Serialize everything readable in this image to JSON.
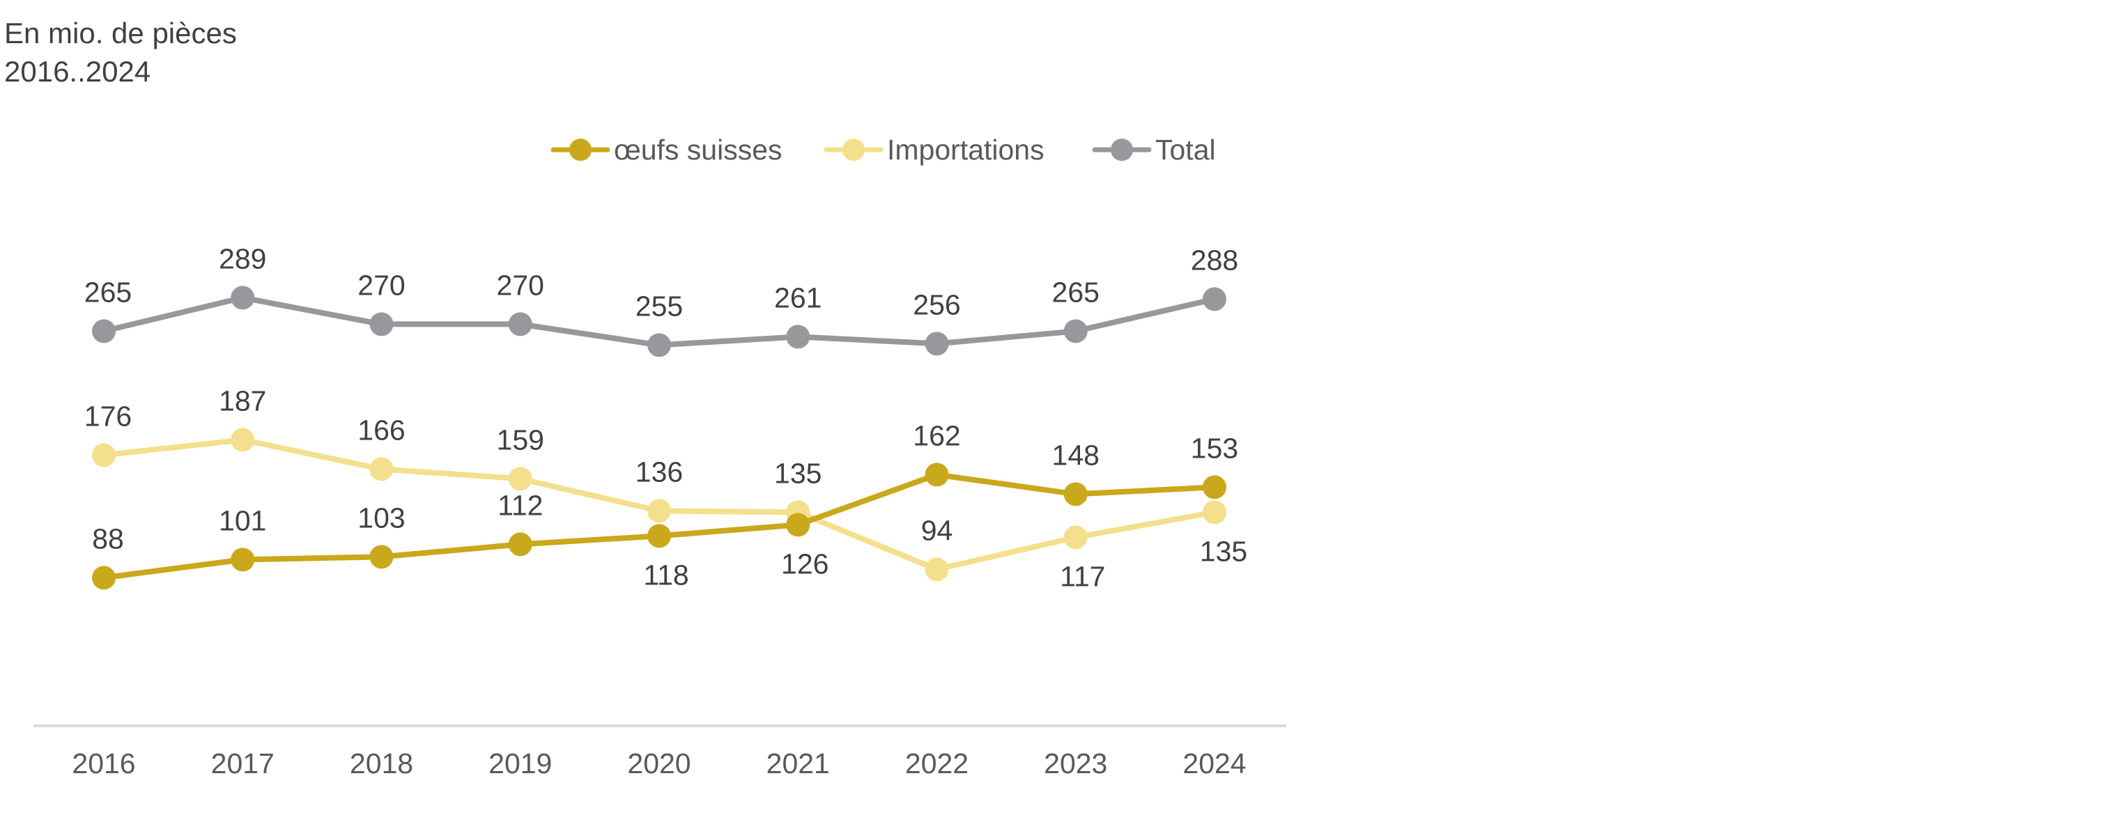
{
  "chart_data": {
    "type": "line",
    "subtitle_lines": [
      "En mio. de pièces",
      "2016..2024"
    ],
    "categories": [
      "2016",
      "2017",
      "2018",
      "2019",
      "2020",
      "2021",
      "2022",
      "2023",
      "2024"
    ],
    "ylim": [
      0,
      300
    ],
    "grid": false,
    "legend_position": "top-center",
    "series": [
      {
        "name": "œufs suisses",
        "color": "#C9A81B",
        "values": [
          88,
          101,
          103,
          112,
          118,
          126,
          162,
          148,
          153
        ],
        "label_positions": [
          "above",
          "above",
          "above",
          "above",
          "below",
          "below",
          "above",
          "above",
          "above"
        ]
      },
      {
        "name": "Importations",
        "color": "#F4DF8C",
        "values": [
          176,
          187,
          166,
          159,
          136,
          135,
          94,
          117,
          135
        ],
        "label_positions": [
          "above",
          "above",
          "above",
          "above",
          "above",
          "above",
          "above",
          "below",
          "below"
        ]
      },
      {
        "name": "Total",
        "color": "#98989C",
        "values": [
          265,
          289,
          270,
          270,
          255,
          261,
          256,
          265,
          288
        ],
        "label_positions": [
          "above",
          "above",
          "above",
          "above",
          "above",
          "above",
          "above",
          "above",
          "above"
        ]
      }
    ]
  }
}
